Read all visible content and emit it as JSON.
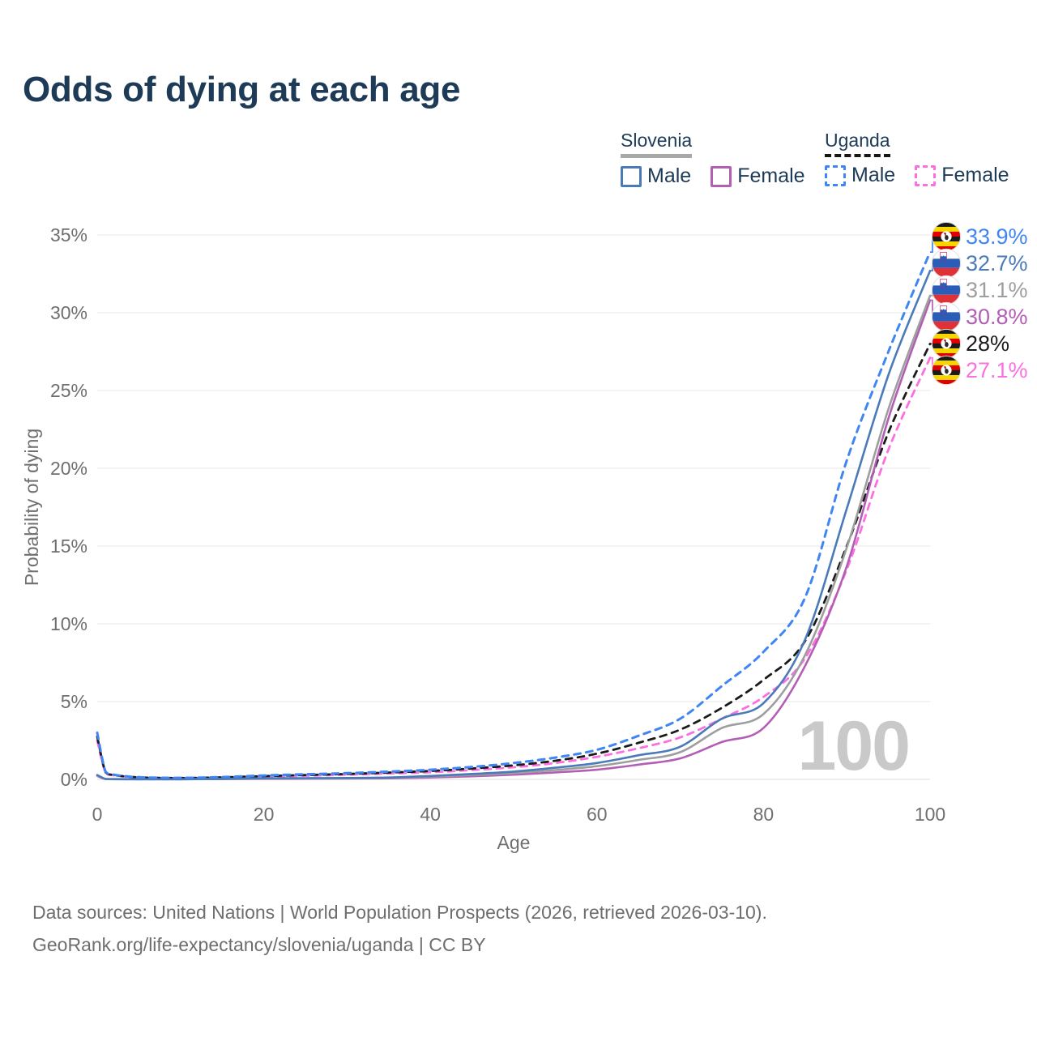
{
  "title": "Odds of dying at each age",
  "watermark": "100",
  "legend": {
    "groups": [
      {
        "name": "Slovenia",
        "line_style": "solid",
        "underline_color": "#a8a8a8",
        "items": [
          {
            "label": "Male",
            "color": "#4a7ab8",
            "dashed": false
          },
          {
            "label": "Female",
            "color": "#b35eb5",
            "dashed": false
          }
        ]
      },
      {
        "name": "Uganda",
        "line_style": "dashed",
        "underline_color": "#161616",
        "items": [
          {
            "label": "Male",
            "color": "#3f86f4",
            "dashed": true
          },
          {
            "label": "Female",
            "color": "#fb6fe1",
            "dashed": true
          }
        ]
      }
    ]
  },
  "footer": {
    "line1": "Data sources: United Nations | World Population Prospects (2026, retrieved 2026-03-10).",
    "line2": "GeoRank.org/life-expectancy/slovenia/uganda | CC BY"
  },
  "chart_data": {
    "type": "line",
    "title": "Odds of dying at each age",
    "xlabel": "Age",
    "ylabel": "Probability of dying",
    "xlim": [
      0,
      100
    ],
    "ylim": [
      0,
      35
    ],
    "xticks": [
      0,
      20,
      40,
      60,
      80,
      100
    ],
    "yticks": [
      0,
      5,
      10,
      15,
      20,
      25,
      30,
      35
    ],
    "ytick_suffix": "%",
    "grid": "horizontal",
    "legend_position": "top-right",
    "x": [
      0,
      1,
      2,
      5,
      10,
      15,
      20,
      25,
      30,
      35,
      40,
      45,
      50,
      55,
      60,
      65,
      70,
      75,
      80,
      85,
      90,
      95,
      100
    ],
    "series": [
      {
        "name": "Uganda Male",
        "country": "Uganda",
        "sex": "Male",
        "flag": "uganda",
        "color": "#3f86f4",
        "dashed": true,
        "width": 3,
        "end_label": "33.9%",
        "end_value": 33.9,
        "values": [
          3.0,
          0.5,
          0.3,
          0.14,
          0.1,
          0.15,
          0.25,
          0.33,
          0.4,
          0.5,
          0.62,
          0.8,
          1.05,
          1.4,
          1.9,
          2.8,
          3.9,
          6.0,
          8.2,
          11.7,
          20.5,
          27.5,
          33.9
        ]
      },
      {
        "name": "Slovenia Male",
        "country": "Slovenia",
        "sex": "Male",
        "flag": "slovenia",
        "color": "#4a7ab8",
        "dashed": false,
        "width": 2.6,
        "end_label": "32.7%",
        "end_value": 32.7,
        "values": [
          0.28,
          0.025,
          0.016,
          0.012,
          0.013,
          0.03,
          0.07,
          0.08,
          0.09,
          0.12,
          0.22,
          0.35,
          0.5,
          0.75,
          1.05,
          1.55,
          2.1,
          3.9,
          4.9,
          9.0,
          17.4,
          26.0,
          32.7
        ]
      },
      {
        "name": "Slovenia",
        "country": "Slovenia",
        "sex": "Both",
        "flag": "slovenia",
        "color": "#9e9e9e",
        "dashed": false,
        "width": 2.6,
        "end_label": "31.1%",
        "end_value": 31.1,
        "values": [
          0.25,
          0.022,
          0.014,
          0.011,
          0.012,
          0.025,
          0.05,
          0.06,
          0.07,
          0.1,
          0.18,
          0.28,
          0.4,
          0.6,
          0.85,
          1.25,
          1.75,
          3.3,
          4.2,
          8.0,
          14.9,
          23.8,
          31.1
        ]
      },
      {
        "name": "Slovenia Female",
        "country": "Slovenia",
        "sex": "Female",
        "flag": "slovenia",
        "color": "#b35eb5",
        "dashed": false,
        "width": 2.6,
        "end_label": "30.8%",
        "end_value": 30.8,
        "values": [
          0.22,
          0.02,
          0.013,
          0.01,
          0.011,
          0.02,
          0.035,
          0.04,
          0.05,
          0.07,
          0.12,
          0.2,
          0.3,
          0.45,
          0.62,
          0.95,
          1.35,
          2.4,
          3.3,
          7.3,
          13.7,
          23.2,
          30.8
        ]
      },
      {
        "name": "Uganda",
        "country": "Uganda",
        "sex": "Both",
        "flag": "uganda",
        "color": "#1b1b1b",
        "dashed": true,
        "width": 2.8,
        "end_label": "28%",
        "end_value": 28,
        "values": [
          2.75,
          0.46,
          0.28,
          0.13,
          0.09,
          0.13,
          0.21,
          0.28,
          0.35,
          0.44,
          0.54,
          0.7,
          0.9,
          1.2,
          1.65,
          2.35,
          3.2,
          4.6,
          6.4,
          8.9,
          15.0,
          22.3,
          28.0
        ]
      },
      {
        "name": "Uganda Female",
        "country": "Uganda",
        "sex": "Female",
        "flag": "uganda",
        "color": "#fb6fe1",
        "dashed": true,
        "width": 2.8,
        "end_label": "27.1%",
        "end_value": 27.1,
        "values": [
          2.5,
          0.42,
          0.26,
          0.12,
          0.08,
          0.11,
          0.17,
          0.23,
          0.3,
          0.38,
          0.46,
          0.6,
          0.78,
          1.05,
          1.45,
          2.0,
          2.7,
          3.9,
          5.3,
          7.8,
          13.5,
          21.2,
          27.1
        ]
      }
    ]
  }
}
